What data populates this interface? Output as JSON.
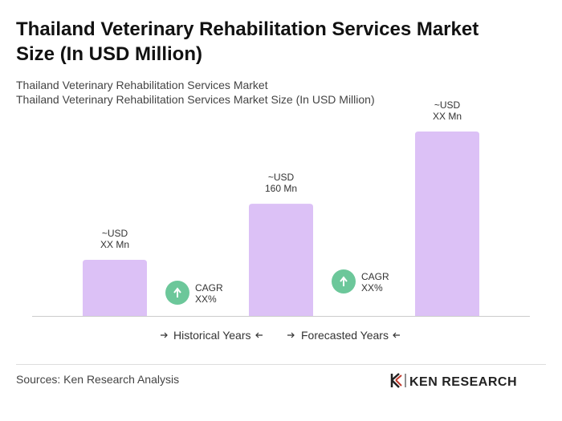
{
  "chart_data": {
    "type": "bar",
    "title": [
      "Thailand Veterinary Rehabilitation Services Market",
      "Size (In USD Million)"
    ],
    "subtitle": [
      "Thailand Veterinary Rehabilitation Services Market",
      "Thailand Veterinary Rehabilitation Services Market Size (In USD Million)"
    ],
    "values": [
      80,
      160,
      263
    ],
    "value_labels": [
      [
        "~USD",
        "XX Mn"
      ],
      [
        "~USD",
        "160 Mn"
      ],
      [
        "~USD",
        "XX Mn"
      ]
    ],
    "color": "#dcc1f6",
    "annotations": [
      [
        "CAGR",
        "XX%"
      ],
      [
        "CAGR",
        "XX%"
      ]
    ],
    "annotation_color": "#6cc79a",
    "legend": [
      "Historical Years",
      "Forecasted Years"
    ],
    "source": "Sources: Ken Research Analysis",
    "logo": "KEN RESEARCH"
  }
}
